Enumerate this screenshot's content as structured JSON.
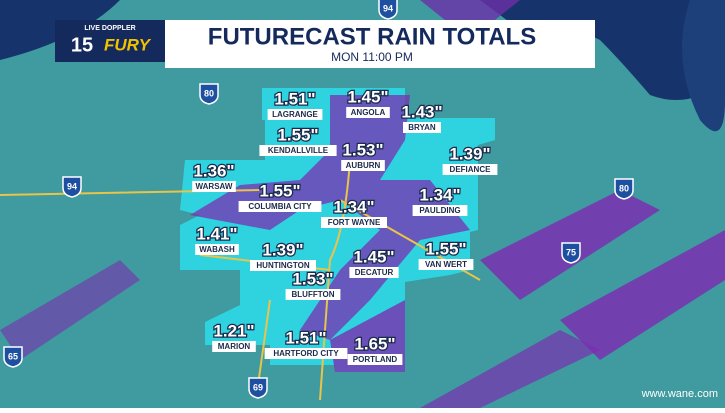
{
  "header": {
    "title": "FUTURECAST RAIN TOTALS",
    "subtitle": "MON 11:00 PM"
  },
  "logo": {
    "top": "LIVE DOPPLER",
    "number": "15",
    "word": "FURY"
  },
  "labels": [
    {
      "value": "1.51\"",
      "name": "LAGRANGE"
    },
    {
      "value": "1.45\"",
      "name": "ANGOLA"
    },
    {
      "value": "1.43\"",
      "name": "BRYAN"
    },
    {
      "value": "1.55\"",
      "name": "KENDALLVILLE"
    },
    {
      "value": "1.53\"",
      "name": "AUBURN"
    },
    {
      "value": "1.39\"",
      "name": "DEFIANCE"
    },
    {
      "value": "1.36\"",
      "name": "WARSAW"
    },
    {
      "value": "1.55\"",
      "name": "COLUMBIA CITY"
    },
    {
      "value": "1.34\"",
      "name": "FORT WAYNE"
    },
    {
      "value": "1.34\"",
      "name": "PAULDING"
    },
    {
      "value": "1.41\"",
      "name": "WABASH"
    },
    {
      "value": "1.39\"",
      "name": "HUNTINGTON"
    },
    {
      "value": "1.45\"",
      "name": "DECATUR"
    },
    {
      "value": "1.55\"",
      "name": "VAN WERT"
    },
    {
      "value": "1.53\"",
      "name": "BLUFFTON"
    },
    {
      "value": "1.21\"",
      "name": "MARION"
    },
    {
      "value": "1.51\"",
      "name": "HARTFORD CITY"
    },
    {
      "value": "1.65\"",
      "name": "PORTLAND"
    }
  ],
  "highways": [
    "94",
    "94",
    "80",
    "80",
    "75",
    "65",
    "69"
  ],
  "website": "www.wane.com"
}
